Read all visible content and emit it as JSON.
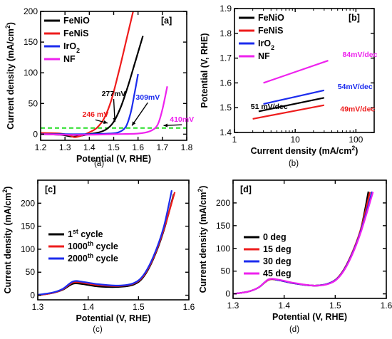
{
  "figure": {
    "panels": [
      {
        "tag": "[a]",
        "caption": "(a)",
        "xlabel": "Potential (V, RHE)",
        "ylabel": [
          "Current density (mA/cm",
          "2",
          ")"
        ],
        "xlim": [
          1.2,
          1.8
        ],
        "ylim": [
          -10,
          200
        ],
        "xticks": [
          1.2,
          1.3,
          1.4,
          1.5,
          1.6,
          1.7,
          1.8
        ],
        "yticks": [
          0,
          50,
          100,
          150,
          200
        ],
        "xtick_labels": [
          "1.2",
          "1.3",
          "1.4",
          "1.5",
          "1.6",
          "1.7",
          "1.8"
        ],
        "ytick_labels": [
          "0",
          "50",
          "100",
          "150",
          "200"
        ],
        "legend": [
          {
            "parts": [
              "FeNiO"
            ],
            "color": "#000000"
          },
          {
            "parts": [
              "FeNiS"
            ],
            "color": "#ee1c1c"
          },
          {
            "parts": [
              "IrO",
              "2"
            ],
            "color": "#1c2cee"
          },
          {
            "parts": [
              "NF"
            ],
            "color": "#ee22ee"
          }
        ],
        "refline": {
          "y": 10,
          "color": "#22dd22"
        },
        "annotations": [
          {
            "text": "246 mV",
            "color": "#ee1c1c",
            "x": 1.425,
            "y": 28,
            "tx": 1.475,
            "ty": 18
          },
          {
            "text": "277mV",
            "color": "#000000",
            "x": 1.5,
            "y": 62,
            "tx": 1.505,
            "ty": 20
          },
          {
            "text": "309mV",
            "color": "#1c2cee",
            "x": 1.64,
            "y": 56,
            "tx": 1.575,
            "ty": 14
          },
          {
            "text": "410mV",
            "color": "#ee22ee",
            "x": 1.78,
            "y": 20,
            "tx": 1.705,
            "ty": 14
          }
        ]
      },
      {
        "tag": "[b]",
        "caption": "(b)",
        "xlabel": [
          "Current density (mA/cm",
          "2",
          ")"
        ],
        "ylabel": [
          "Potential (V, RHE)"
        ],
        "log": true,
        "xlim": [
          1,
          200
        ],
        "ylim": [
          1.4,
          1.9
        ],
        "xticks": [
          1,
          10,
          100
        ],
        "yticks": [
          1.4,
          1.5,
          1.6,
          1.7,
          1.8,
          1.9
        ],
        "xtick_labels": [
          "1",
          "10",
          "100"
        ],
        "ytick_labels": [
          "1.4",
          "1.5",
          "1.6",
          "1.7",
          "1.8",
          "1.9"
        ],
        "legend": [
          {
            "parts": [
              "FeNiO"
            ],
            "color": "#000000"
          },
          {
            "parts": [
              "FeNiS"
            ],
            "color": "#ee1c1c"
          },
          {
            "parts": [
              "IrO",
              "2"
            ],
            "color": "#1c2cee"
          },
          {
            "parts": [
              "NF"
            ],
            "color": "#ee22ee"
          }
        ],
        "annotations": [
          {
            "text": "84mV/dec",
            "color": "#ee22ee",
            "x": 60,
            "y": 1.705
          },
          {
            "text": "54mV/dec",
            "color": "#1c2cee",
            "x": 50,
            "y": 1.575
          },
          {
            "text": "51 mV/dec",
            "color": "#000000",
            "x": 1.85,
            "y": 1.495
          },
          {
            "text": "49mV/dec",
            "color": "#ee1c1c",
            "x": 55,
            "y": 1.485
          }
        ]
      },
      {
        "tag": "[c]",
        "caption": "(c)",
        "xlabel": "Potential (V, RHE)",
        "ylabel": [
          "Current density (mA/cm",
          "2",
          ")"
        ],
        "xlim": [
          1.3,
          1.6
        ],
        "ylim": [
          -10,
          250
        ],
        "xticks": [
          1.3,
          1.4,
          1.5,
          1.6
        ],
        "yticks": [
          0,
          50,
          100,
          150,
          200
        ],
        "xtick_labels": [
          "1.3",
          "1.4",
          "1.5",
          "1.6"
        ],
        "ytick_labels": [
          "0",
          "50",
          "100",
          "150",
          "200"
        ],
        "legend": [
          {
            "parts": [
              "1",
              "st",
              " cycle"
            ],
            "sup": true,
            "color": "#000000"
          },
          {
            "parts": [
              "1000",
              "th",
              " cycle"
            ],
            "sup": true,
            "color": "#ee1c1c"
          },
          {
            "parts": [
              "2000",
              "th",
              " cycle"
            ],
            "sup": true,
            "color": "#1c2cee"
          }
        ]
      },
      {
        "tag": "[d]",
        "caption": "(d)",
        "xlabel": "Potential (V, RHE)",
        "ylabel": [
          "Current density (mA/cm",
          "2",
          ")"
        ],
        "xlim": [
          1.3,
          1.6
        ],
        "ylim": [
          -10,
          250
        ],
        "xticks": [
          1.3,
          1.4,
          1.5,
          1.6
        ],
        "yticks": [
          0,
          50,
          100,
          150,
          200
        ],
        "xtick_labels": [
          "1.3",
          "1.4",
          "1.5",
          "1.6"
        ],
        "ytick_labels": [
          "0",
          "50",
          "100",
          "150",
          "200"
        ],
        "legend": [
          {
            "parts": [
              "0 deg"
            ],
            "color": "#000000"
          },
          {
            "parts": [
              "15 deg"
            ],
            "color": "#ee1c1c"
          },
          {
            "parts": [
              "30 deg"
            ],
            "color": "#1c2cee"
          },
          {
            "parts": [
              "45 deg"
            ],
            "color": "#ee22ee"
          }
        ]
      }
    ]
  },
  "chart_data": [
    {
      "type": "line",
      "xlabel": "Potential (V, RHE)",
      "ylabel": "Current density (mA/cm2)",
      "xlim": [
        1.2,
        1.8
      ],
      "ylim": [
        -10,
        200
      ],
      "series": [
        {
          "name": "FeNiO",
          "color": "#000000",
          "points": [
            [
              1.2,
              0
            ],
            [
              1.28,
              -1
            ],
            [
              1.33,
              -4
            ],
            [
              1.36,
              -3
            ],
            [
              1.4,
              0
            ],
            [
              1.44,
              3
            ],
            [
              1.47,
              8
            ],
            [
              1.5,
              20
            ],
            [
              1.53,
              45
            ],
            [
              1.56,
              80
            ],
            [
              1.59,
              120
            ],
            [
              1.62,
              160
            ]
          ]
        },
        {
          "name": "FeNiS",
          "color": "#ee1c1c",
          "points": [
            [
              1.2,
              2
            ],
            [
              1.28,
              1
            ],
            [
              1.32,
              -2
            ],
            [
              1.34,
              -5
            ],
            [
              1.37,
              -2
            ],
            [
              1.4,
              3
            ],
            [
              1.43,
              10
            ],
            [
              1.46,
              25
            ],
            [
              1.49,
              55
            ],
            [
              1.52,
              100
            ],
            [
              1.55,
              150
            ],
            [
              1.58,
              200
            ]
          ]
        },
        {
          "name": "IrO2",
          "color": "#1c2cee",
          "points": [
            [
              1.2,
              0
            ],
            [
              1.3,
              0
            ],
            [
              1.4,
              0
            ],
            [
              1.48,
              1
            ],
            [
              1.52,
              3
            ],
            [
              1.55,
              12
            ],
            [
              1.57,
              35
            ],
            [
              1.585,
              65
            ],
            [
              1.6,
              98
            ]
          ]
        },
        {
          "name": "NF",
          "color": "#ee22ee",
          "points": [
            [
              1.2,
              0
            ],
            [
              1.3,
              -1
            ],
            [
              1.4,
              -1
            ],
            [
              1.5,
              0
            ],
            [
              1.6,
              1
            ],
            [
              1.65,
              5
            ],
            [
              1.68,
              15
            ],
            [
              1.7,
              40
            ],
            [
              1.72,
              78
            ]
          ]
        }
      ]
    },
    {
      "type": "line",
      "xlabel": "Current density (mA/cm2)",
      "ylabel": "Potential (V, RHE)",
      "log_x": true,
      "xlim": [
        1,
        200
      ],
      "ylim": [
        1.4,
        1.9
      ],
      "series": [
        {
          "name": "FeNiO",
          "color": "#000000",
          "points": [
            [
              2.5,
              1.485
            ],
            [
              30,
              1.54
            ]
          ]
        },
        {
          "name": "FeNiS",
          "color": "#ee1c1c",
          "points": [
            [
              2,
              1.455
            ],
            [
              30,
              1.51
            ]
          ]
        },
        {
          "name": "IrO2",
          "color": "#1c2cee",
          "points": [
            [
              3,
              1.515
            ],
            [
              30,
              1.57
            ]
          ]
        },
        {
          "name": "NF",
          "color": "#ee22ee",
          "points": [
            [
              3,
              1.6
            ],
            [
              35,
              1.69
            ]
          ]
        }
      ]
    },
    {
      "type": "line",
      "xlabel": "Potential (V, RHE)",
      "ylabel": "Current density (mA/cm2)",
      "xlim": [
        1.3,
        1.6
      ],
      "ylim": [
        -10,
        250
      ],
      "series": [
        {
          "name": "1st cycle",
          "color": "#000000",
          "points": [
            [
              1.3,
              0
            ],
            [
              1.33,
              5
            ],
            [
              1.35,
              12
            ],
            [
              1.37,
              25
            ],
            [
              1.39,
              24
            ],
            [
              1.42,
              19
            ],
            [
              1.46,
              18
            ],
            [
              1.49,
              23
            ],
            [
              1.51,
              40
            ],
            [
              1.53,
              80
            ],
            [
              1.55,
              140
            ],
            [
              1.57,
              220
            ]
          ]
        },
        {
          "name": "1000th cycle",
          "color": "#ee1c1c",
          "points": [
            [
              1.3,
              0
            ],
            [
              1.33,
              5
            ],
            [
              1.35,
              13
            ],
            [
              1.37,
              28
            ],
            [
              1.39,
              27
            ],
            [
              1.42,
              22
            ],
            [
              1.46,
              20
            ],
            [
              1.49,
              25
            ],
            [
              1.51,
              42
            ],
            [
              1.53,
              82
            ],
            [
              1.55,
              142
            ],
            [
              1.572,
              224
            ]
          ]
        },
        {
          "name": "2000th cycle",
          "color": "#1c2cee",
          "points": [
            [
              1.3,
              1
            ],
            [
              1.33,
              6
            ],
            [
              1.35,
              14
            ],
            [
              1.37,
              30
            ],
            [
              1.39,
              29
            ],
            [
              1.42,
              24
            ],
            [
              1.46,
              21
            ],
            [
              1.49,
              26
            ],
            [
              1.51,
              44
            ],
            [
              1.53,
              85
            ],
            [
              1.55,
              148
            ],
            [
              1.566,
              228
            ]
          ]
        }
      ]
    },
    {
      "type": "line",
      "xlabel": "Potential (V, RHE)",
      "ylabel": "Current density (mA/cm2)",
      "xlim": [
        1.3,
        1.6
      ],
      "ylim": [
        -10,
        250
      ],
      "series": [
        {
          "name": "0 deg",
          "color": "#000000",
          "points": [
            [
              1.3,
              0
            ],
            [
              1.33,
              5
            ],
            [
              1.35,
              14
            ],
            [
              1.37,
              31
            ],
            [
              1.39,
              30
            ],
            [
              1.42,
              23
            ],
            [
              1.46,
              18
            ],
            [
              1.49,
              24
            ],
            [
              1.51,
              42
            ],
            [
              1.53,
              82
            ],
            [
              1.55,
              142
            ],
            [
              1.565,
              225
            ]
          ]
        },
        {
          "name": "15 deg",
          "color": "#ee1c1c",
          "points": [
            [
              1.3,
              0
            ],
            [
              1.33,
              5
            ],
            [
              1.35,
              14
            ],
            [
              1.37,
              31
            ],
            [
              1.39,
              30
            ],
            [
              1.42,
              23
            ],
            [
              1.46,
              18
            ],
            [
              1.49,
              24
            ],
            [
              1.51,
              42
            ],
            [
              1.53,
              82
            ],
            [
              1.55,
              142
            ],
            [
              1.568,
              224
            ]
          ]
        },
        {
          "name": "30 deg",
          "color": "#1c2cee",
          "points": [
            [
              1.3,
              0
            ],
            [
              1.33,
              5
            ],
            [
              1.35,
              14
            ],
            [
              1.37,
              32
            ],
            [
              1.39,
              30
            ],
            [
              1.42,
              23
            ],
            [
              1.46,
              18
            ],
            [
              1.49,
              24
            ],
            [
              1.51,
              41
            ],
            [
              1.53,
              80
            ],
            [
              1.55,
              138
            ],
            [
              1.572,
              225
            ]
          ]
        },
        {
          "name": "45 deg",
          "color": "#ee22ee",
          "points": [
            [
              1.3,
              0
            ],
            [
              1.33,
              5
            ],
            [
              1.35,
              14
            ],
            [
              1.37,
              32
            ],
            [
              1.39,
              31
            ],
            [
              1.42,
              24
            ],
            [
              1.46,
              18
            ],
            [
              1.49,
              23
            ],
            [
              1.51,
              40
            ],
            [
              1.53,
              78
            ],
            [
              1.55,
              135
            ],
            [
              1.574,
              224
            ]
          ]
        }
      ]
    }
  ]
}
